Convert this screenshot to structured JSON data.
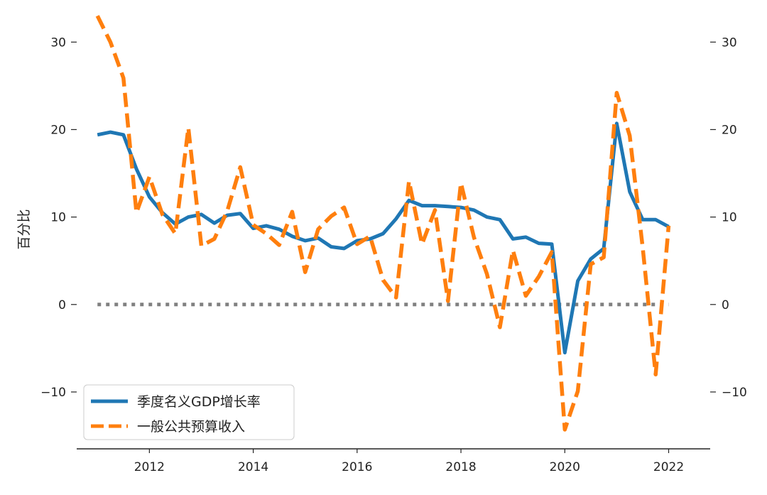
{
  "chart_data": {
    "type": "line",
    "ylabel": "百分比",
    "ylim": [
      -16.5,
      34
    ],
    "xlim": [
      2010.6,
      2022.8
    ],
    "yticks": [
      -10,
      0,
      10,
      20,
      30
    ],
    "ytick_labels": [
      "−10",
      "0",
      "10",
      "20",
      "30"
    ],
    "xticks": [
      2012,
      2014,
      2016,
      2018,
      2020,
      2022
    ],
    "xtick_labels": [
      "2012",
      "2014",
      "2016",
      "2018",
      "2020",
      "2022"
    ],
    "secondary_y_axis": true,
    "legend_position": "lower-left",
    "grid": false,
    "zero_line": {
      "y": 0,
      "color": "#808080",
      "style": "dotted"
    },
    "series": [
      {
        "name": "季度名义GDP增长率",
        "color": "#1f77b4",
        "style": "solid",
        "x": [
          2011.0,
          2011.25,
          2011.5,
          2011.75,
          2012.0,
          2012.25,
          2012.5,
          2012.75,
          2013.0,
          2013.25,
          2013.5,
          2013.75,
          2014.0,
          2014.25,
          2014.5,
          2014.75,
          2015.0,
          2015.25,
          2015.5,
          2015.75,
          2016.0,
          2016.25,
          2016.5,
          2016.75,
          2017.0,
          2017.25,
          2017.5,
          2017.75,
          2018.0,
          2018.25,
          2018.5,
          2018.75,
          2019.0,
          2019.25,
          2019.5,
          2019.75,
          2020.0,
          2020.25,
          2020.5,
          2020.75,
          2021.0,
          2021.25,
          2021.5,
          2021.75,
          2022.0
        ],
        "values": [
          19.4,
          19.7,
          19.4,
          15.5,
          12.3,
          10.5,
          9.2,
          10.0,
          10.3,
          9.3,
          10.2,
          10.4,
          8.7,
          9.0,
          8.6,
          7.8,
          7.3,
          7.6,
          6.6,
          6.4,
          7.3,
          7.5,
          8.1,
          9.8,
          11.9,
          11.3,
          11.3,
          11.2,
          11.1,
          10.8,
          10.0,
          9.7,
          7.5,
          7.7,
          7.0,
          6.9,
          -5.5,
          2.7,
          5.2,
          6.4,
          20.7,
          12.9,
          9.7,
          9.7,
          8.9
        ]
      },
      {
        "name": "一般公共预算收入",
        "color": "#ff7f0e",
        "style": "dashed",
        "x": [
          2011.0,
          2011.25,
          2011.5,
          2011.75,
          2012.0,
          2012.25,
          2012.5,
          2012.75,
          2013.0,
          2013.25,
          2013.5,
          2013.75,
          2014.0,
          2014.25,
          2014.5,
          2014.75,
          2015.0,
          2015.25,
          2015.5,
          2015.75,
          2016.0,
          2016.25,
          2016.5,
          2016.75,
          2017.0,
          2017.25,
          2017.5,
          2017.75,
          2018.0,
          2018.25,
          2018.5,
          2018.75,
          2019.0,
          2019.25,
          2019.5,
          2019.75,
          2020.0,
          2020.25,
          2020.5,
          2020.75,
          2021.0,
          2021.25,
          2021.5,
          2021.75,
          2022.0
        ],
        "values": [
          33.0,
          30.0,
          25.9,
          10.5,
          14.6,
          10.3,
          8.1,
          20.2,
          6.7,
          7.5,
          10.7,
          15.7,
          9.1,
          8.1,
          6.8,
          10.6,
          3.7,
          8.6,
          10.1,
          11.1,
          6.9,
          7.8,
          2.8,
          0.8,
          14.1,
          6.9,
          10.8,
          0.4,
          13.9,
          7.7,
          3.5,
          -2.6,
          6.2,
          1.0,
          3.2,
          6.0,
          -14.3,
          -9.9,
          4.6,
          5.4,
          24.2,
          19.3,
          6.5,
          -8.0,
          9.0
        ]
      }
    ]
  }
}
